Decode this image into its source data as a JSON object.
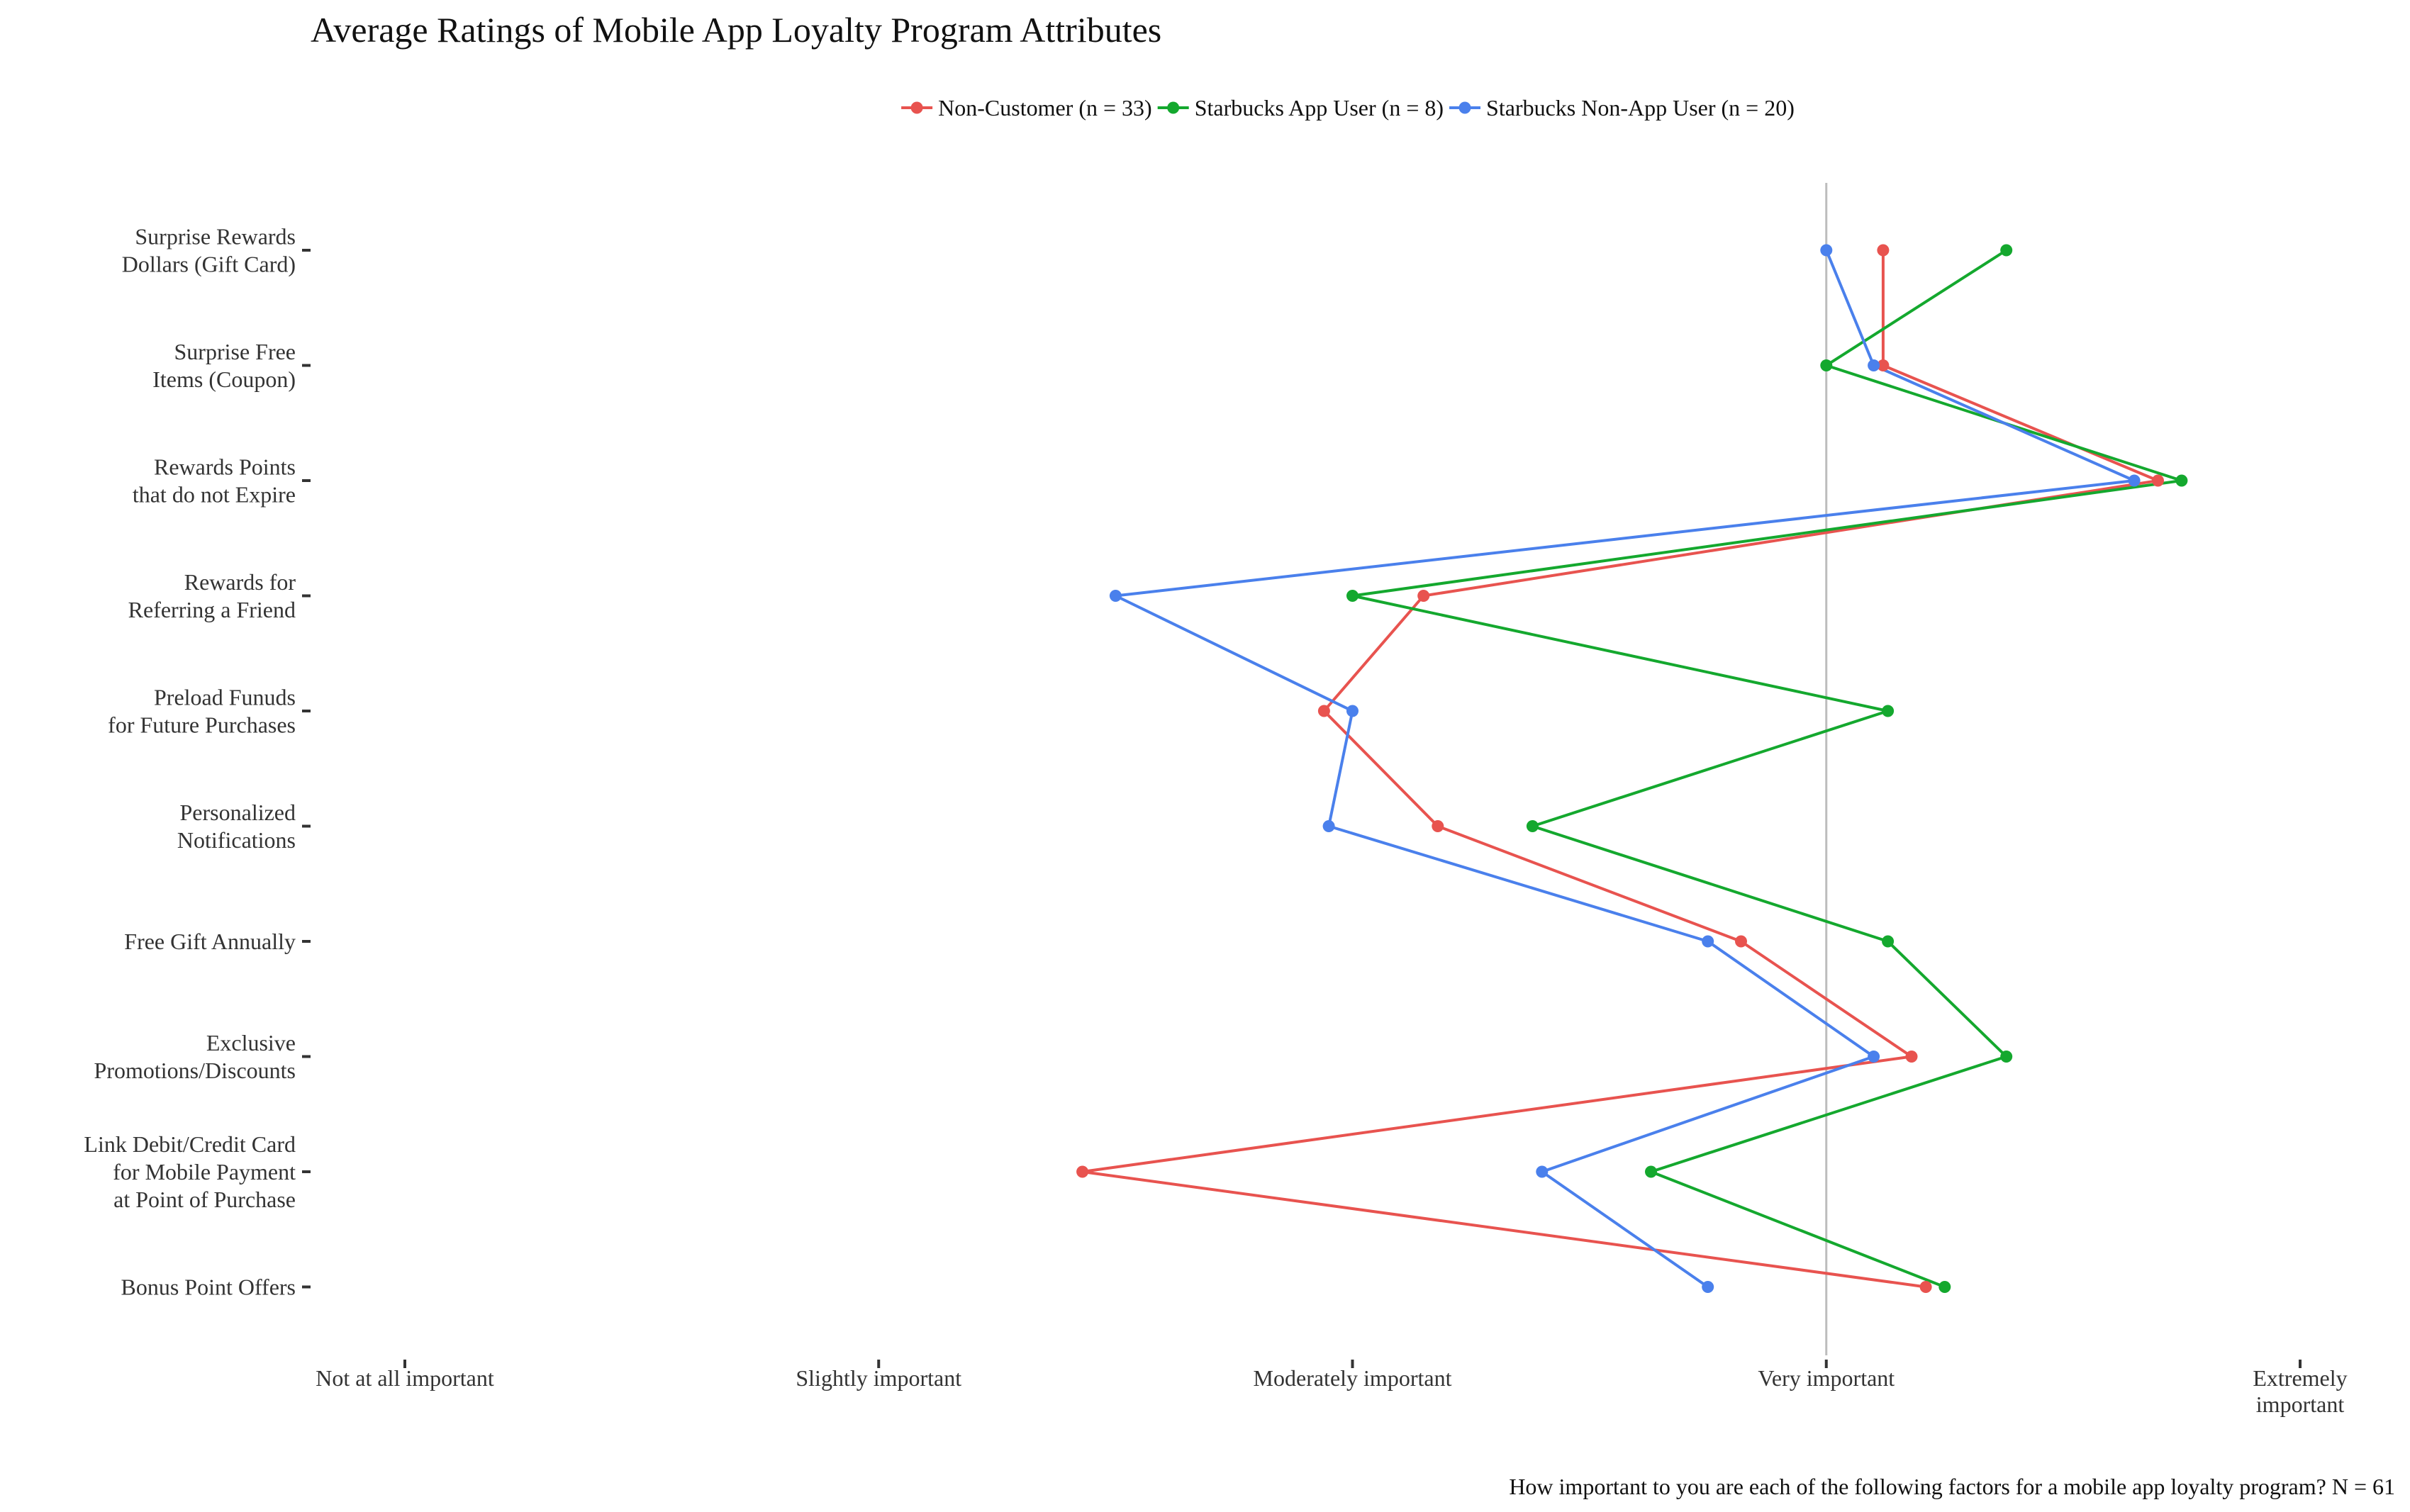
{
  "chart_data": {
    "type": "line",
    "title": "Average Ratings of Mobile App Loyalty Program Attributes",
    "caption": "How important to you are each of the following factors for a mobile app loyalty program? N =  61",
    "xlabel": "",
    "ylabel": "",
    "x_ticks": [
      {
        "value": 1,
        "lines": [
          "Not at all important"
        ]
      },
      {
        "value": 2,
        "lines": [
          "Slightly important"
        ]
      },
      {
        "value": 3,
        "lines": [
          "Moderately important"
        ]
      },
      {
        "value": 4,
        "lines": [
          "Very important"
        ]
      },
      {
        "value": 5,
        "lines": [
          "Extremely",
          "important"
        ]
      }
    ],
    "xlim": [
      0.8,
      5.1
    ],
    "reference_line_x": 4,
    "grid": false,
    "legend_position": "top",
    "categories": [
      {
        "label": "Surprise Rewards Dollars (Gift Card)",
        "lines": [
          "Surprise Rewards",
          "Dollars (Gift Card)"
        ]
      },
      {
        "label": "Surprise Free Items (Coupon)",
        "lines": [
          "Surprise Free",
          "Items (Coupon)"
        ]
      },
      {
        "label": "Rewards Points that do not Expire",
        "lines": [
          "Rewards Points",
          "that do not Expire"
        ]
      },
      {
        "label": "Rewards for Referring a Friend",
        "lines": [
          "Rewards for",
          "Referring a Friend"
        ]
      },
      {
        "label": "Preload Funuds for Future Purchases",
        "lines": [
          "Preload Funuds",
          "for Future Purchases"
        ]
      },
      {
        "label": "Personalized Notifications",
        "lines": [
          "Personalized",
          "Notifications"
        ]
      },
      {
        "label": "Free Gift Annually",
        "lines": [
          "Free Gift Annually"
        ]
      },
      {
        "label": "Exclusive Promotions/Discounts",
        "lines": [
          "Exclusive",
          "Promotions/Discounts"
        ]
      },
      {
        "label": "Link Debit/Credit Card for Mobile Payment at Point of Purchase",
        "lines": [
          "Link Debit/Credit Card",
          "for Mobile Payment",
          "at Point of Purchase"
        ]
      },
      {
        "label": "Bonus Point Offers",
        "lines": [
          "Bonus Point Offers"
        ]
      }
    ],
    "series": [
      {
        "name": "Non-Customer (n = 33)",
        "color": "#E8534F",
        "values": [
          4.12,
          4.12,
          4.7,
          3.15,
          2.94,
          3.18,
          3.82,
          4.18,
          2.43,
          4.21
        ]
      },
      {
        "name": "Starbucks App User (n = 8)",
        "color": "#14A82E",
        "values": [
          4.38,
          4.0,
          4.75,
          3.0,
          4.13,
          3.38,
          4.13,
          4.38,
          3.63,
          4.25
        ]
      },
      {
        "name": "Starbucks Non-App User (n = 20)",
        "color": "#4A80EC",
        "values": [
          4.0,
          4.1,
          4.65,
          2.5,
          3.0,
          2.95,
          3.75,
          4.1,
          3.4,
          3.75
        ]
      }
    ]
  }
}
